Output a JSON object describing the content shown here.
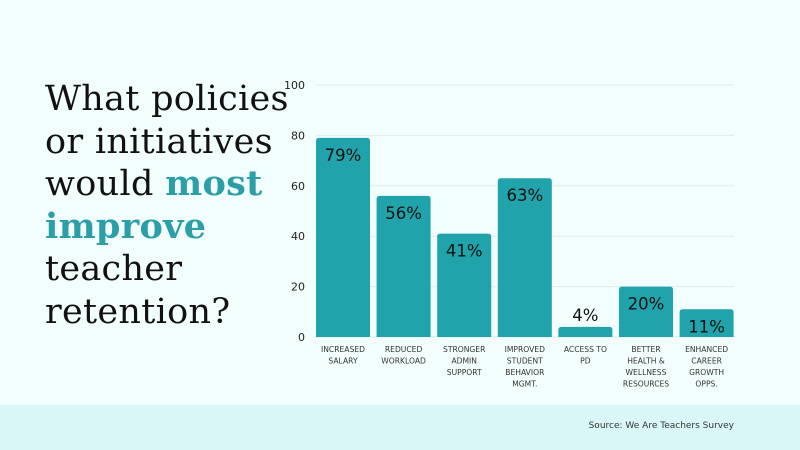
{
  "title": {
    "line1": "What policies",
    "line2": "or initiatives",
    "line3_plain": "would ",
    "line3_highlight": "most",
    "line4_highlight": "improve",
    "line5": "teacher",
    "line6": "retention?"
  },
  "colors": {
    "bar": "#20a3aa",
    "highlight": "#2a9fa8",
    "background": "#f2fdfd",
    "footer": "#d9f7f7"
  },
  "chart_data": {
    "type": "bar",
    "categories": [
      [
        "INCREASED",
        "SALARY"
      ],
      [
        "REDUCED",
        "WORKLOAD"
      ],
      [
        "STRONGER",
        "ADMIN",
        "SUPPORT"
      ],
      [
        "IMPROVED",
        "STUDENT",
        "BEHAVIOR",
        "MGMT."
      ],
      [
        "ACCESS TO",
        "PD"
      ],
      [
        "BETTER",
        "HEALTH &",
        "WELLNESS",
        "RESOURCES"
      ],
      [
        "ENHANCED",
        "CAREER",
        "GROWTH",
        "OPPS."
      ]
    ],
    "values": [
      79,
      56,
      41,
      63,
      4,
      20,
      11
    ],
    "data_labels": [
      "79%",
      "56%",
      "41%",
      "63%",
      "4%",
      "20%",
      "11%"
    ],
    "yticks": [
      "0",
      "20",
      "40",
      "60",
      "80",
      "100"
    ],
    "ylim": [
      0,
      100
    ],
    "grid": true
  },
  "footer": {
    "source": "Source: We Are Teachers Survey"
  }
}
